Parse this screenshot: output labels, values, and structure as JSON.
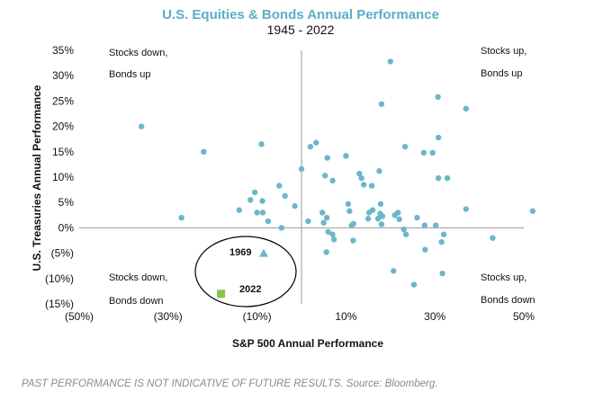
{
  "chart_data": {
    "type": "scatter",
    "title": "U.S. Equities & Bonds Annual Performance",
    "subtitle": "1945 - 2022",
    "xlabel": "S&P 500 Annual Performance",
    "ylabel": "U.S. Treasuries Annual Performance",
    "xlim": [
      -50,
      50
    ],
    "ylim": [
      -15,
      35
    ],
    "x_ticks": [
      {
        "value": -50,
        "label": "(50%)"
      },
      {
        "value": -30,
        "label": "(30%)"
      },
      {
        "value": -10,
        "label": "(10%)"
      },
      {
        "value": 10,
        "label": "10%"
      },
      {
        "value": 30,
        "label": "30%"
      },
      {
        "value": 50,
        "label": "50%"
      }
    ],
    "y_ticks": [
      {
        "value": 35,
        "label": "35%"
      },
      {
        "value": 30,
        "label": "30%"
      },
      {
        "value": 25,
        "label": "25%"
      },
      {
        "value": 20,
        "label": "20%"
      },
      {
        "value": 15,
        "label": "15%"
      },
      {
        "value": 10,
        "label": "10%"
      },
      {
        "value": 5,
        "label": "5%"
      },
      {
        "value": 0,
        "label": "0%"
      },
      {
        "value": -5,
        "label": "(5%)"
      },
      {
        "value": -10,
        "label": "(10%)"
      },
      {
        "value": -15,
        "label": "(15%)"
      }
    ],
    "quadrant_labels": {
      "top_left": [
        "Stocks down,",
        "Bonds up"
      ],
      "top_right": [
        "Stocks up,",
        "Bonds up"
      ],
      "bottom_left": [
        "Stocks down,",
        "Bonds down"
      ],
      "bottom_right": [
        "Stocks up,",
        "Bonds down"
      ]
    },
    "colors": {
      "title": "#5aaec6",
      "points": "#6bb7c9",
      "highlight_1969": "#6bb7c9",
      "highlight_2022": "#8bc34a",
      "axis": "#999999"
    },
    "highlights": [
      {
        "label": "1969",
        "x": -8.5,
        "y": -5.0,
        "marker": "triangle"
      },
      {
        "label": "2022",
        "x": -18.1,
        "y": -13.0,
        "marker": "square"
      }
    ],
    "points": [
      [
        -36,
        20
      ],
      [
        -27,
        2
      ],
      [
        -22,
        15
      ],
      [
        -9,
        16.5
      ],
      [
        -14,
        3.5
      ],
      [
        -11.5,
        5.5
      ],
      [
        -10.5,
        7
      ],
      [
        -10,
        3
      ],
      [
        -8.8,
        5.3
      ],
      [
        -8.7,
        3
      ],
      [
        -7.5,
        1.3
      ],
      [
        -5,
        8.3
      ],
      [
        -4.5,
        0
      ],
      [
        -3.7,
        6.3
      ],
      [
        -1.5,
        4.3
      ],
      [
        0,
        11.6
      ],
      [
        1.5,
        1.3
      ],
      [
        2,
        16
      ],
      [
        3.3,
        16.8
      ],
      [
        4.7,
        3
      ],
      [
        5,
        1
      ],
      [
        5.3,
        10.3
      ],
      [
        5.7,
        2
      ],
      [
        5.8,
        13.8
      ],
      [
        6,
        -0.8
      ],
      [
        5.6,
        -4.8
      ],
      [
        7,
        9.3
      ],
      [
        7,
        -1.3
      ],
      [
        7.3,
        -2.3
      ],
      [
        10,
        14.2
      ],
      [
        10.5,
        4.7
      ],
      [
        10.8,
        3.3
      ],
      [
        11.3,
        0.5
      ],
      [
        11.7,
        0.8
      ],
      [
        11.6,
        -2.5
      ],
      [
        13,
        10.7
      ],
      [
        13.5,
        9.8
      ],
      [
        14,
        8.5
      ],
      [
        15,
        1.8
      ],
      [
        15.2,
        3
      ],
      [
        15.8,
        8.3
      ],
      [
        16,
        3.5
      ],
      [
        17.2,
        1.8
      ],
      [
        17.5,
        11.2
      ],
      [
        18,
        24.4
      ],
      [
        17.7,
        2.8
      ],
      [
        17.8,
        4.7
      ],
      [
        18,
        0.7
      ],
      [
        18.2,
        2.3
      ],
      [
        20,
        32.8
      ],
      [
        20.7,
        -8.5
      ],
      [
        21,
        2.5
      ],
      [
        21.7,
        3
      ],
      [
        22,
        1.7
      ],
      [
        23,
        -0.3
      ],
      [
        23.3,
        16
      ],
      [
        23.5,
        -1.3
      ],
      [
        25.3,
        -11.2
      ],
      [
        26,
        2
      ],
      [
        27.5,
        14.8
      ],
      [
        27.7,
        0.5
      ],
      [
        27.8,
        -4.3
      ],
      [
        29.5,
        14.8
      ],
      [
        30.2,
        0.5
      ],
      [
        30.7,
        25.8
      ],
      [
        30.8,
        9.8
      ],
      [
        30.8,
        17.8
      ],
      [
        31.5,
        -2.8
      ],
      [
        31.7,
        -9
      ],
      [
        32,
        -1.3
      ],
      [
        32.8,
        9.8
      ],
      [
        37,
        23.5
      ],
      [
        37,
        3.7
      ],
      [
        43,
        -2
      ],
      [
        52,
        3.3
      ]
    ]
  },
  "footnote": "PAST PERFORMANCE IS NOT INDICATIVE OF FUTURE RESULTS. Source: Bloomberg."
}
